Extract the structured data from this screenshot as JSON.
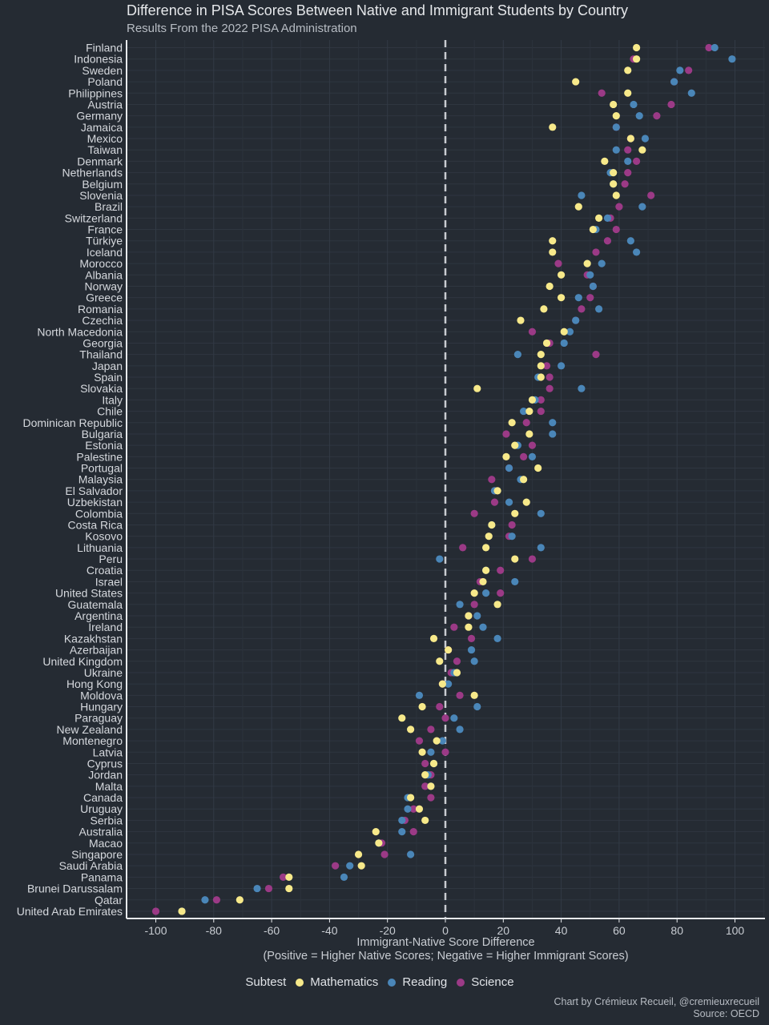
{
  "title": "Difference in PISA Scores Between Native and Immigrant Students by Country",
  "subtitle": "Results From the 2022 PISA Administration",
  "credit_line1": "Chart by Crémieux Recueil, @cremieuxrecueil",
  "credit_line2": "Source: OECD",
  "legend": {
    "title": "Subtest",
    "items": [
      {
        "label": "Mathematics",
        "color": "#f7e98a"
      },
      {
        "label": "Reading",
        "color": "#4a86b8"
      },
      {
        "label": "Science",
        "color": "#9b3a86"
      }
    ]
  },
  "chart_data": {
    "type": "scatter",
    "title": "Difference in PISA Scores Between Native and Immigrant Students by Country",
    "subtitle": "Results From the 2022 PISA Administration",
    "xlabel_line1": "Immigrant-Native Score Difference",
    "xlabel_line2": "(Positive = Higher Native Scores; Negative = Higher Immigrant Scores)",
    "xlim": [
      -110,
      110
    ],
    "xticks": [
      -100,
      -80,
      -60,
      -40,
      -20,
      0,
      20,
      40,
      60,
      80,
      100
    ],
    "reference_line": 0,
    "grid": true,
    "legend_position": "bottom",
    "categories": [
      "Finland",
      "Indonesia",
      "Sweden",
      "Poland",
      "Philippines",
      "Austria",
      "Germany",
      "Jamaica",
      "Mexico",
      "Taiwan",
      "Denmark",
      "Netherlands",
      "Belgium",
      "Slovenia",
      "Brazil",
      "Switzerland",
      "France",
      "Türkiye",
      "Iceland",
      "Morocco",
      "Albania",
      "Norway",
      "Greece",
      "Romania",
      "Czechia",
      "North Macedonia",
      "Georgia",
      "Thailand",
      "Japan",
      "Spain",
      "Slovakia",
      "Italy",
      "Chile",
      "Dominican Republic",
      "Bulgaria",
      "Estonia",
      "Palestine",
      "Portugal",
      "Malaysia",
      "El Salvador",
      "Uzbekistan",
      "Colombia",
      "Costa Rica",
      "Kosovo",
      "Lithuania",
      "Peru",
      "Croatia",
      "Israel",
      "United States",
      "Guatemala",
      "Argentina",
      "Ireland",
      "Kazakhstan",
      "Azerbaijan",
      "United Kingdom",
      "Ukraine",
      "Hong Kong",
      "Moldova",
      "Hungary",
      "Paraguay",
      "New Zealand",
      "Montenegro",
      "Latvia",
      "Cyprus",
      "Jordan",
      "Malta",
      "Canada",
      "Uruguay",
      "Serbia",
      "Australia",
      "Macao",
      "Singapore",
      "Saudi Arabia",
      "Panama",
      "Brunei Darussalam",
      "Qatar",
      "United Arab Emirates"
    ],
    "series": [
      {
        "name": "Mathematics",
        "values": [
          66,
          66,
          63,
          45,
          63,
          58,
          59,
          37,
          64,
          68,
          55,
          58,
          58,
          59,
          46,
          53,
          51,
          37,
          37,
          49,
          40,
          36,
          40,
          34,
          26,
          41,
          35,
          33,
          33,
          33,
          11,
          30,
          29,
          23,
          29,
          24,
          21,
          32,
          27,
          18,
          28,
          24,
          16,
          15,
          14,
          24,
          14,
          13,
          10,
          18,
          8,
          8,
          -4,
          1,
          -2,
          4,
          -1,
          10,
          -8,
          -15,
          -12,
          -3,
          -8,
          -4,
          -7,
          -5,
          -12,
          -9,
          -7,
          -24,
          -23,
          -30,
          -29,
          -54,
          -54,
          -71,
          -91
        ]
      },
      {
        "name": "Reading",
        "values": [
          93,
          99,
          81,
          79,
          85,
          65,
          67,
          59,
          69,
          59,
          63,
          57,
          58,
          47,
          68,
          56,
          52,
          64,
          66,
          54,
          50,
          51,
          46,
          53,
          45,
          43,
          41,
          25,
          40,
          32,
          47,
          31,
          27,
          37,
          37,
          25,
          30,
          22,
          26,
          17,
          22,
          33,
          16,
          23,
          33,
          -2,
          14,
          24,
          14,
          5,
          11,
          13,
          18,
          9,
          10,
          3,
          1,
          -9,
          11,
          3,
          5,
          -1,
          -5,
          -4,
          -6,
          -5,
          -13,
          -13,
          -15,
          -15,
          -23,
          -12,
          -33,
          -35,
          -65,
          -83,
          -91
        ]
      },
      {
        "name": "Science",
        "values": [
          91,
          65,
          84,
          79,
          54,
          78,
          73,
          59,
          64,
          63,
          66,
          63,
          62,
          71,
          60,
          57,
          59,
          56,
          52,
          39,
          49,
          51,
          50,
          47,
          45,
          30,
          36,
          52,
          35,
          36,
          36,
          33,
          33,
          28,
          21,
          30,
          27,
          22,
          16,
          17,
          17,
          10,
          23,
          22,
          6,
          30,
          19,
          12,
          19,
          10,
          8,
          3,
          9,
          1,
          4,
          2,
          -1,
          5,
          -2,
          0,
          -5,
          -9,
          0,
          -7,
          -5,
          -7,
          -5,
          -11,
          -14,
          -11,
          -22,
          -21,
          -38,
          -56,
          -61,
          -79,
          -100
        ]
      }
    ]
  }
}
